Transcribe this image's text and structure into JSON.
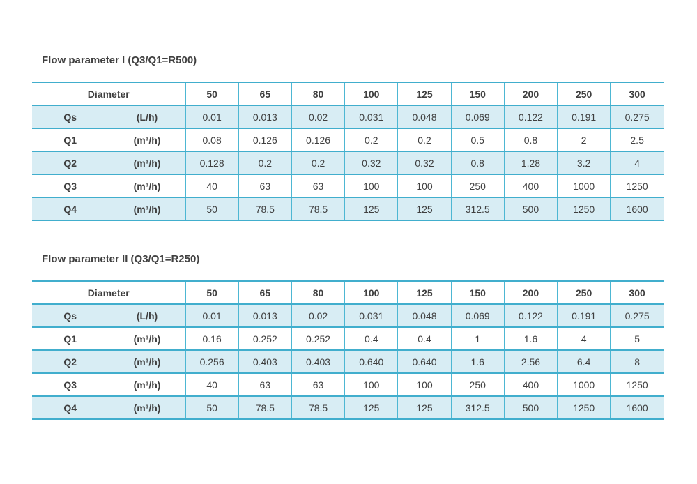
{
  "colors": {
    "table_border_horizontal": "#41aecd",
    "table_border_vertical": "#4db7d3",
    "row_alternate_fill": "#d8edf4",
    "text": "#3f3f3f",
    "page_background": "#ffffff"
  },
  "tables": [
    {
      "title": "Flow parameter I (Q3/Q1=R500)",
      "header": {
        "diameter_label": "Diameter",
        "sizes": [
          "50",
          "65",
          "80",
          "100",
          "125",
          "150",
          "200",
          "250",
          "300"
        ]
      },
      "rows": [
        {
          "param": "Qs",
          "unit": "(L/h)",
          "values": [
            "0.01",
            "0.013",
            "0.02",
            "0.031",
            "0.048",
            "0.069",
            "0.122",
            "0.191",
            "0.275"
          ]
        },
        {
          "param": "Q1",
          "unit": "(m³/h)",
          "values": [
            "0.08",
            "0.126",
            "0.126",
            "0.2",
            "0.2",
            "0.5",
            "0.8",
            "2",
            "2.5"
          ]
        },
        {
          "param": "Q2",
          "unit": "(m³/h)",
          "values": [
            "0.128",
            "0.2",
            "0.2",
            "0.32",
            "0.32",
            "0.8",
            "1.28",
            "3.2",
            "4"
          ]
        },
        {
          "param": "Q3",
          "unit": "(m³/h)",
          "values": [
            "40",
            "63",
            "63",
            "100",
            "100",
            "250",
            "400",
            "1000",
            "1250"
          ]
        },
        {
          "param": "Q4",
          "unit": "(m³/h)",
          "values": [
            "50",
            "78.5",
            "78.5",
            "125",
            "125",
            "312.5",
            "500",
            "1250",
            "1600"
          ]
        }
      ]
    },
    {
      "title": "Flow parameter II (Q3/Q1=R250)",
      "header": {
        "diameter_label": "Diameter",
        "sizes": [
          "50",
          "65",
          "80",
          "100",
          "125",
          "150",
          "200",
          "250",
          "300"
        ]
      },
      "rows": [
        {
          "param": "Qs",
          "unit": "(L/h)",
          "values": [
            "0.01",
            "0.013",
            "0.02",
            "0.031",
            "0.048",
            "0.069",
            "0.122",
            "0.191",
            "0.275"
          ]
        },
        {
          "param": "Q1",
          "unit": "(m³/h)",
          "values": [
            "0.16",
            "0.252",
            "0.252",
            "0.4",
            "0.4",
            "1",
            "1.6",
            "4",
            "5"
          ]
        },
        {
          "param": "Q2",
          "unit": "(m³/h)",
          "values": [
            "0.256",
            "0.403",
            "0.403",
            "0.640",
            "0.640",
            "1.6",
            "2.56",
            "6.4",
            "8"
          ]
        },
        {
          "param": "Q3",
          "unit": "(m³/h)",
          "values": [
            "40",
            "63",
            "63",
            "100",
            "100",
            "250",
            "400",
            "1000",
            "1250"
          ]
        },
        {
          "param": "Q4",
          "unit": "(m³/h)",
          "values": [
            "50",
            "78.5",
            "78.5",
            "125",
            "125",
            "312.5",
            "500",
            "1250",
            "1600"
          ]
        }
      ]
    }
  ]
}
